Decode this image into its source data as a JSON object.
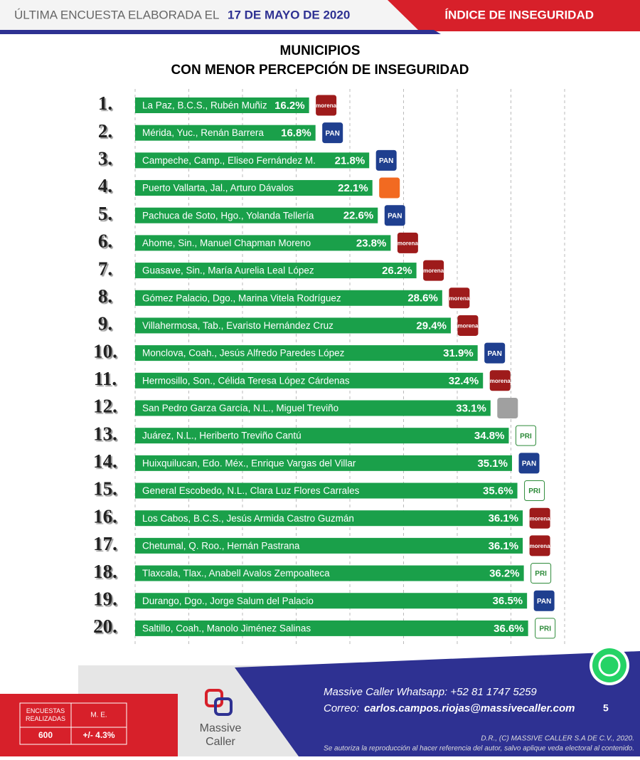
{
  "header": {
    "survey_label": "ÚLTIMA ENCUESTA ELABORADA EL",
    "survey_date": "17 DE MAYO DE 2020",
    "section": "ÍNDICE DE INSEGURIDAD"
  },
  "chart_data": {
    "type": "bar",
    "orientation": "horizontal",
    "title": "MUNICIPIOS",
    "subtitle": "CON MENOR PERCEPCIÓN DE INSEGURIDAD",
    "ranks": [
      "1.",
      "2.",
      "3.",
      "4.",
      "5.",
      "6.",
      "7.",
      "8.",
      "9.",
      "10.",
      "11.",
      "12.",
      "13.",
      "14.",
      "15.",
      "16.",
      "17.",
      "18.",
      "19.",
      "20."
    ],
    "categories": [
      "La Paz, B.C.S., Rubén Muñiz",
      "Mérida, Yuc., Renán Barrera",
      "Campeche, Camp., Eliseo Fernández M.",
      "Puerto Vallarta, Jal., Arturo Dávalos",
      "Pachuca de Soto, Hgo., Yolanda Tellería",
      "Ahome, Sin., Manuel Chapman Moreno",
      "Guasave, Sin., María Aurelia Leal López",
      "Gómez Palacio, Dgo., Marina Vitela Rodríguez",
      "Villahermosa, Tab., Evaristo Hernández Cruz",
      "Monclova, Coah., Jesús Alfredo Paredes López",
      "Hermosillo, Son., Célida Teresa López Cárdenas",
      "San Pedro Garza García, N.L., Miguel Treviño",
      "Juárez, N.L., Heriberto Treviño Cantú",
      "Huixquilucan, Edo. Méx., Enrique Vargas del Villar",
      "General Escobedo, N.L., Clara Luz Flores Carrales",
      "Los Cabos, B.C.S., Jesús Armida Castro Guzmán",
      "Chetumal, Q. Roo., Hernán Pastrana",
      "Tlaxcala, Tlax., Anabell Avalos Zempoalteca",
      "Durango, Dgo., Jorge Salum del Palacio",
      "Saltillo, Coah., Manolo Jiménez Salinas"
    ],
    "values": [
      16.2,
      16.8,
      21.8,
      22.1,
      22.6,
      23.8,
      26.2,
      28.6,
      29.4,
      31.9,
      32.4,
      33.1,
      34.8,
      35.1,
      35.6,
      36.1,
      36.1,
      36.2,
      36.5,
      36.6
    ],
    "value_labels": [
      "16.2%",
      "16.8%",
      "21.8%",
      "22.1%",
      "22.6%",
      "23.8%",
      "26.2%",
      "28.6%",
      "29.4%",
      "31.9%",
      "32.4%",
      "33.1%",
      "34.8%",
      "35.1%",
      "35.6%",
      "36.1%",
      "36.1%",
      "36.2%",
      "36.5%",
      "36.6%"
    ],
    "logos": [
      "morena",
      "PAN",
      "PAN",
      null,
      "PAN",
      "morena",
      "morena",
      "morena",
      "morena",
      "PAN",
      "morena",
      null,
      "PRI",
      "PAN",
      "PRI",
      "morena",
      "morena",
      "PRI",
      "PAN",
      "PRI"
    ],
    "logo_colors": [
      "#9e1b1b",
      "#1f3f8f",
      "#1f3f8f",
      "#f26a21",
      "#1f3f8f",
      "#9e1b1b",
      "#9e1b1b",
      "#9e1b1b",
      "#9e1b1b",
      "#1f3f8f",
      "#9e1b1b",
      "#a0a0a0",
      "#2e8b3a",
      "#1f3f8f",
      "#2e8b3a",
      "#9e1b1b",
      "#9e1b1b",
      "#2e8b3a",
      "#1f3f8f",
      "#2e8b3a"
    ],
    "color": "#1aa04a",
    "xlim": [
      0,
      40
    ],
    "xticks": [
      0,
      5,
      10,
      15,
      20,
      25,
      30,
      35,
      40
    ],
    "grid": true
  },
  "footer": {
    "table": {
      "headers": [
        "ENCUESTAS REALIZADAS",
        "M. E."
      ],
      "row": [
        "600",
        "+/- 4.3%"
      ]
    },
    "logo": [
      "Massive",
      "Caller"
    ],
    "whatsapp": "Massive Caller Whatsapp: +52   81 1747 5259",
    "email_label": "Correo:",
    "email": "carlos.campos.riojas@massivecaller.com",
    "page": "5",
    "copyright": "D.R., (C) MASSIVE CALLER S.A DE C.V., 2020.",
    "notice": "Se autoriza la reproducción al hacer referencia del autor, salvo aplique veda electoral al contenido."
  }
}
